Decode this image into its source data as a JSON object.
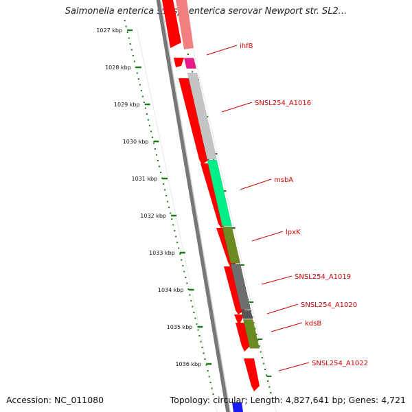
{
  "title": "Salmonella enterica subsp. enterica serovar Newport str. SL2...",
  "accession": "Accession: NC_011080",
  "topology": "Topology: circular; Length: 4,827,641 bp; Genes: 4,721",
  "colors": {
    "label": "#cc0000",
    "tick": "#1a7a1a",
    "cds": "#ff0000",
    "backbone": "#808080"
  },
  "ruler": {
    "unit": "kbp",
    "ticks": [
      "1027 kbp",
      "1028 kbp",
      "1029 kbp",
      "1030 kbp",
      "1031 kbp",
      "1032 kbp",
      "1033 kbp",
      "1034 kbp",
      "1035 kbp",
      "1036 kbp"
    ]
  },
  "genes": [
    {
      "label": "ihfB",
      "start_kbp": 1027.75,
      "end_kbp": 1028.05,
      "color": "#e8198b"
    },
    {
      "label": "SNSL254_A1016",
      "start_kbp": 1028.15,
      "end_kbp": 1030.5,
      "color": "#c4c4c4"
    },
    {
      "label": "msbA",
      "start_kbp": 1030.5,
      "end_kbp": 1032.3,
      "color": "#00ee88"
    },
    {
      "label": "lpxK",
      "start_kbp": 1032.3,
      "end_kbp": 1033.3,
      "color": "#6b8a22"
    },
    {
      "label": "SNSL254_A1019",
      "start_kbp": 1033.3,
      "end_kbp": 1034.55,
      "color": "#6e6e6e"
    },
    {
      "label": "SNSL254_A1020",
      "start_kbp": 1034.55,
      "end_kbp": 1034.8,
      "color": "#555555"
    },
    {
      "label": "kdsB",
      "start_kbp": 1034.8,
      "end_kbp": 1035.6,
      "color": "#6b8a22"
    },
    {
      "label": "SNSL254_A1022",
      "start_kbp": null,
      "end_kbp": null,
      "color": null
    }
  ]
}
